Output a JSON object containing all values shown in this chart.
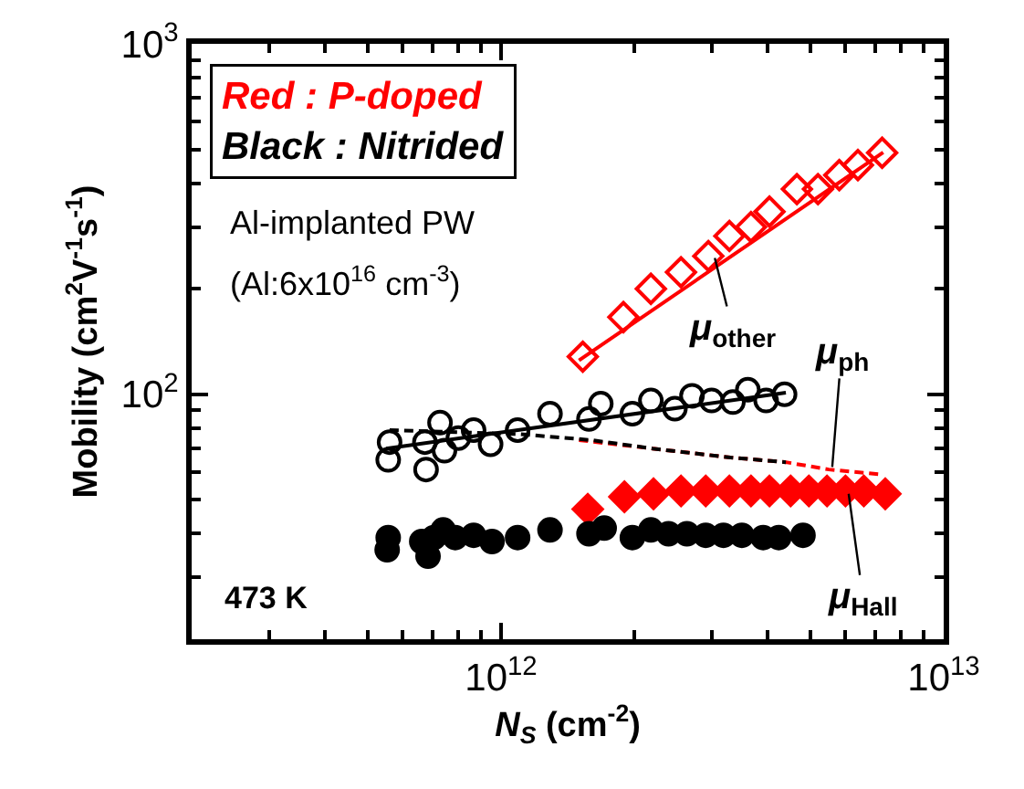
{
  "chart_data": {
    "type": "scatter",
    "xlabel": "N$_{S}$ (cm$^{-2}$)",
    "ylabel": "Mobility (cm$^{2}$V$^{-1}$s$^{-1}$)",
    "log": "xy",
    "grid": false,
    "xlim": [
      200000000000.0,
      10000000000000.0
    ],
    "ylim": [
      20,
      1000
    ],
    "xticks": [
      {
        "value": 200000000000.0,
        "label": null
      },
      {
        "value": 300000000000.0,
        "label": null
      },
      {
        "value": 400000000000.0,
        "label": null
      },
      {
        "value": 500000000000.0,
        "label": null
      },
      {
        "value": 600000000000.0,
        "label": null
      },
      {
        "value": 700000000000.0,
        "label": null
      },
      {
        "value": 800000000000.0,
        "label": null
      },
      {
        "value": 900000000000.0,
        "label": null
      },
      {
        "value": 1000000000000.0,
        "label": "10$^{12}$"
      },
      {
        "value": 2000000000000.0,
        "label": null
      },
      {
        "value": 3000000000000.0,
        "label": null
      },
      {
        "value": 4000000000000.0,
        "label": null
      },
      {
        "value": 5000000000000.0,
        "label": null
      },
      {
        "value": 6000000000000.0,
        "label": null
      },
      {
        "value": 7000000000000.0,
        "label": null
      },
      {
        "value": 8000000000000.0,
        "label": null
      },
      {
        "value": 9000000000000.0,
        "label": null
      },
      {
        "value": 10000000000000.0,
        "label": "10$^{13}$"
      }
    ],
    "yticks": [
      {
        "value": 20,
        "label": null
      },
      {
        "value": 30,
        "label": null
      },
      {
        "value": 40,
        "label": null
      },
      {
        "value": 50,
        "label": null
      },
      {
        "value": 60,
        "label": null
      },
      {
        "value": 70,
        "label": null
      },
      {
        "value": 80,
        "label": null
      },
      {
        "value": 90,
        "label": null
      },
      {
        "value": 100,
        "label": "10$^{2}$"
      },
      {
        "value": 200,
        "label": null
      },
      {
        "value": 300,
        "label": null
      },
      {
        "value": 400,
        "label": null
      },
      {
        "value": 500,
        "label": null
      },
      {
        "value": 600,
        "label": null
      },
      {
        "value": 700,
        "label": null
      },
      {
        "value": 800,
        "label": null
      },
      {
        "value": 900,
        "label": null
      },
      {
        "value": 1000,
        "label": "10$^{3}$"
      }
    ],
    "series": [
      {
        "type": "line",
        "color": "#ff0000",
        "line_style": "solid",
        "x": [
          1500000000000.0,
          7300000000000.0
        ],
        "values": [
          125,
          490
        ]
      },
      {
        "type": "line",
        "color": "#000000",
        "line_style": "solid",
        "x": [
          550000000000.0,
          4400000000000.0
        ],
        "values": [
          70,
          101
        ]
      },
      {
        "type": "line",
        "color": "#ff0000",
        "line_style": "dashed",
        "x": [
          1500000000000.0,
          2200000000000.0,
          3300000000000.0,
          4400000000000.0,
          5500000000000.0,
          7300000000000.0
        ],
        "values": [
          74,
          70,
          66,
          64,
          61,
          59
        ]
      },
      {
        "type": "line",
        "color": "#000000",
        "line_style": "dashed",
        "x": [
          560000000000.0,
          1100000000000.0,
          1600000000000.0,
          2200000000000.0,
          3300000000000.0,
          4400000000000.0
        ],
        "values": [
          79,
          77,
          74,
          70,
          66,
          64
        ]
      },
      {
        "marker": "diamond-open",
        "color": "#ff0000",
        "x": [
          1530000000000.0,
          1890000000000.0,
          2180000000000.0,
          2550000000000.0,
          2940000000000.0,
          3280000000000.0,
          3670000000000.0,
          4040000000000.0,
          4660000000000.0,
          5200000000000.0,
          5810000000000.0,
          6400000000000.0,
          7260000000000.0
        ],
        "values": [
          128,
          166,
          200,
          223,
          248,
          283,
          300,
          332,
          385,
          385,
          422,
          451,
          489
        ]
      },
      {
        "marker": "circle-open",
        "color": "#000000",
        "x": [
          560000000000.0,
          556000000000.0,
          673000000000.0,
          677000000000.0,
          728000000000.0,
          745000000000.0,
          801000000000.0,
          867000000000.0,
          947000000000.0,
          1090000000000.0,
          1290000000000.0,
          1580000000000.0,
          1680000000000.0,
          1980000000000.0,
          2180000000000.0,
          2470000000000.0,
          2700000000000.0,
          2990000000000.0,
          3340000000000.0,
          3610000000000.0,
          3970000000000.0,
          4370000000000.0
        ],
        "values": [
          73,
          65,
          73,
          61,
          83,
          69,
          75,
          79,
          72,
          79,
          88,
          85,
          94,
          88,
          96,
          91,
          99,
          96,
          95,
          103,
          96,
          100
        ]
      },
      {
        "marker": "diamond",
        "color": "#ff0000",
        "x": [
          1570000000000.0,
          1900000000000.0,
          2210000000000.0,
          2550000000000.0,
          2900000000000.0,
          3280000000000.0,
          3670000000000.0,
          4040000000000.0,
          4510000000000.0,
          4960000000000.0,
          5450000000000.0,
          6000000000000.0,
          6600000000000.0,
          7380000000000.0
        ],
        "values": [
          47,
          51,
          52,
          53,
          53,
          53,
          53,
          53,
          53,
          53,
          53,
          53,
          53,
          52
        ]
      },
      {
        "marker": "circle",
        "color": "#000000",
        "x": [
          556000000000.0,
          553000000000.0,
          662000000000.0,
          684000000000.0,
          705000000000.0,
          740000000000.0,
          788000000000.0,
          867000000000.0,
          954000000000.0,
          1090000000000.0,
          1290000000000.0,
          1580000000000.0,
          1710000000000.0,
          1980000000000.0,
          2180000000000.0,
          2390000000000.0,
          2630000000000.0,
          2900000000000.0,
          3180000000000.0,
          3500000000000.0,
          3910000000000.0,
          4240000000000.0,
          4810000000000.0
        ],
        "values": [
          39,
          36,
          38,
          34.5,
          39,
          41,
          39,
          39.6,
          38,
          39,
          41,
          40,
          41.5,
          39,
          41,
          40,
          40,
          39.6,
          39.6,
          39.6,
          39,
          39,
          39.6
        ]
      }
    ],
    "annotations": [
      "Red : P-doped",
      "Black : Nitrided",
      "Al-implanted PW",
      "(Al:6x10$^{16}$ cm$^{-3}$)",
      "473 K",
      {
        "text": "μ$_{other}$",
        "x": 3040000000000.0,
        "y": 245
      },
      {
        "text": "μ$_{ph}$",
        "x": 5600000000000.0,
        "y": 62
      },
      {
        "text": "μ$_{Hall}$",
        "x": 6100000000000.0,
        "y": 52
      }
    ]
  }
}
